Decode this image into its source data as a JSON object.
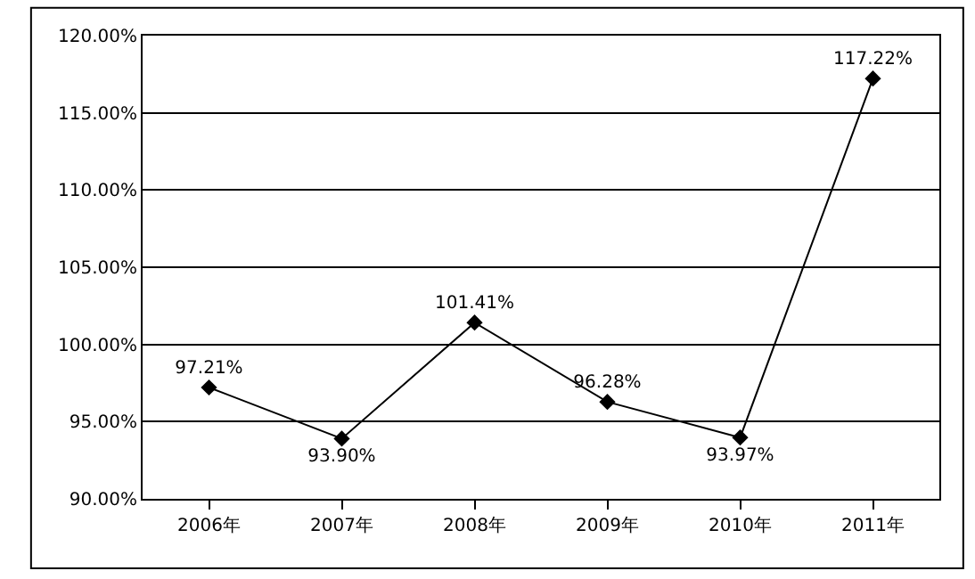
{
  "chart_data": {
    "type": "line",
    "categories": [
      "2006年",
      "2007年",
      "2008年",
      "2009年",
      "2010年",
      "2011年"
    ],
    "series": [
      {
        "color": "#000000",
        "values": [
          97.21,
          93.9,
          101.41,
          96.28,
          93.97,
          117.22
        ],
        "value_labels": [
          "97.21%",
          "93.90%",
          "101.41%",
          "96.28%",
          "93.97%",
          "117.22%"
        ]
      }
    ],
    "ylim": [
      90,
      120
    ],
    "yticks": [
      {
        "value": 90,
        "label": "90.00%"
      },
      {
        "value": 95,
        "label": "95.00%"
      },
      {
        "value": 100,
        "label": "100.00%"
      },
      {
        "value": 105,
        "label": "105.00%"
      },
      {
        "value": 110,
        "label": "110.00%"
      },
      {
        "value": 115,
        "label": "115.00%"
      },
      {
        "value": 120,
        "label": "120.00%"
      }
    ],
    "grid": "y",
    "marker": "diamond",
    "line_style": "solid",
    "legend": false
  }
}
